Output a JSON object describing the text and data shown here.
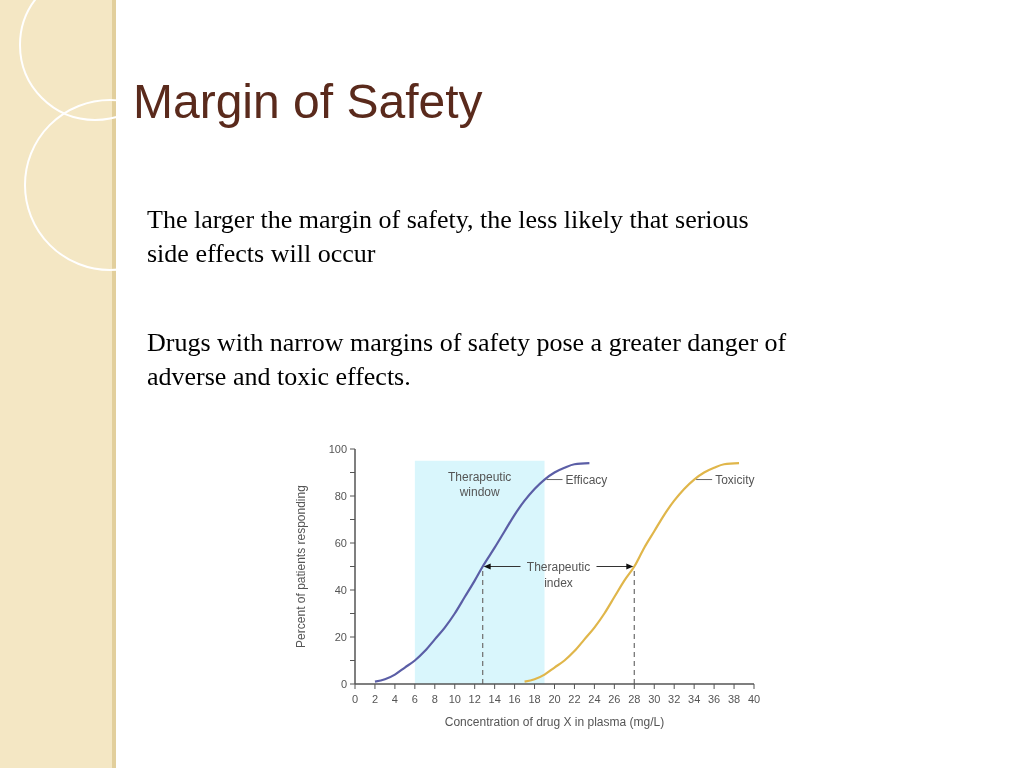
{
  "chart_data": {
    "type": "line",
    "title": "Margin of Safety",
    "annotations": [
      "The larger the margin of safety, the less likely that serious\nside effects will occur",
      "Drugs with narrow margins of safety pose a greater danger of\nadverse and toxic effects.",
      {
        "text": "Therapeutic\nindex",
        "x": 28,
        "y": 50
      }
    ],
    "xlabel": "Concentration of drug X in plasma (mg/L)",
    "ylabel": "Percent of patients responding",
    "series": [
      {
        "name": "Efficacy",
        "color": "#5b5ea6",
        "x": [
          2,
          3,
          4,
          5,
          6,
          7,
          8,
          9,
          10,
          11,
          12,
          12.8,
          14,
          15,
          16,
          17,
          18,
          19,
          20,
          21,
          22,
          23.5
        ],
        "values": [
          1,
          2,
          4,
          7,
          10,
          14,
          19,
          24,
          30,
          37,
          44,
          50,
          58,
          65,
          72,
          78,
          83,
          87,
          90,
          92,
          93.5,
          94
        ]
      },
      {
        "name": "Toxicity",
        "color": "#e0b64a",
        "x": [
          17,
          18,
          19,
          20,
          21,
          22,
          23,
          24,
          25,
          26,
          27,
          28,
          29,
          30,
          31,
          32,
          33,
          34,
          35,
          36,
          37,
          38.5
        ],
        "values": [
          1,
          2,
          4,
          7,
          10,
          14,
          19,
          24,
          30,
          37,
          44,
          50,
          58,
          65,
          72,
          78,
          83,
          87,
          90,
          92,
          93.5,
          94
        ]
      }
    ],
    "xlim": [
      0,
      40
    ],
    "xticks": [
      0,
      2,
      4,
      6,
      8,
      10,
      12,
      14,
      16,
      18,
      20,
      22,
      24,
      26,
      28,
      30,
      32,
      34,
      36,
      38,
      40
    ],
    "ylim": [
      0,
      100
    ],
    "yticks": [
      0,
      {
        "value": 10,
        "label": null
      },
      20,
      {
        "value": 30,
        "label": null
      },
      40,
      {
        "value": 50,
        "label": null
      },
      60,
      {
        "value": 70,
        "label": null
      },
      80,
      {
        "value": 90,
        "label": null
      },
      100
    ],
    "bands": [
      {
        "axis": "x",
        "from": 6,
        "to": 19,
        "label": "Therapeutic\nwindow",
        "color": "#d9f6fc"
      }
    ],
    "ref_lines": [
      {
        "axis": "x",
        "value": 12.8,
        "line_style": "dashed"
      },
      {
        "axis": "x",
        "value": 28,
        "line_style": "dashed"
      }
    ],
    "grid": false,
    "marker": "none",
    "line_style": "solid"
  }
}
